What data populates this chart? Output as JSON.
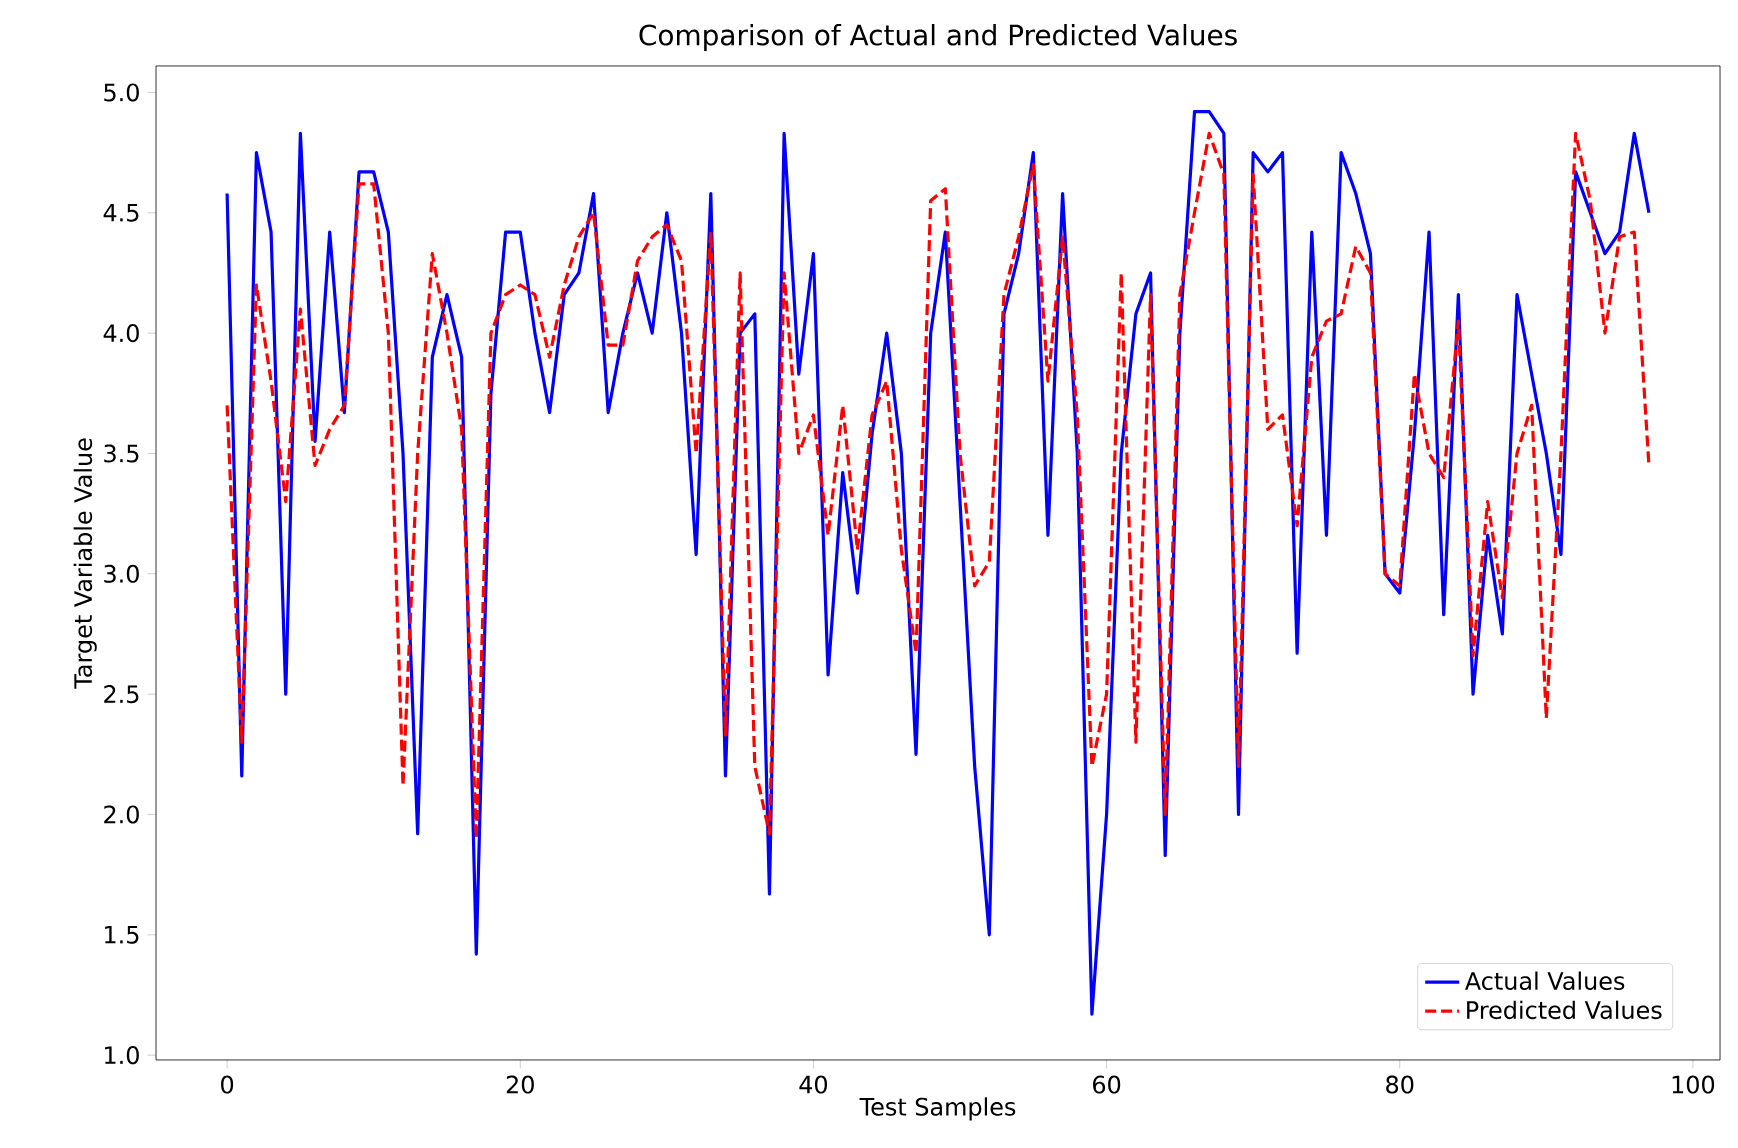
{
  "chart_data": {
    "type": "line",
    "title": "Comparison of Actual and Predicted Values",
    "xlabel": "Test Samples",
    "ylabel": "Target Variable Value",
    "x": [
      0,
      1,
      2,
      3,
      4,
      5,
      6,
      7,
      8,
      9,
      10,
      11,
      12,
      13,
      14,
      15,
      16,
      17,
      18,
      19,
      20,
      21,
      22,
      23,
      24,
      25,
      26,
      27,
      28,
      29,
      30,
      31,
      32,
      33,
      34,
      35,
      36,
      37,
      38,
      39,
      40,
      41,
      42,
      43,
      44,
      45,
      46,
      47,
      48,
      49,
      50,
      51,
      52,
      53,
      54,
      55,
      56,
      57,
      58,
      59,
      60,
      61,
      62,
      63,
      64,
      65,
      66,
      67,
      68,
      69,
      70,
      71,
      72,
      73,
      74,
      75,
      76,
      77,
      78,
      79,
      80,
      81,
      82,
      83,
      84,
      85,
      86,
      87,
      88,
      89,
      90,
      91,
      92,
      93,
      94,
      95,
      96,
      97
    ],
    "series": [
      {
        "name": "Actual Values",
        "color": "#0000ff",
        "line_style": "solid",
        "values": [
          4.58,
          2.16,
          4.75,
          4.42,
          2.5,
          4.83,
          3.55,
          4.42,
          3.67,
          4.67,
          4.67,
          4.42,
          3.5,
          1.92,
          3.9,
          4.16,
          3.9,
          1.42,
          3.75,
          4.42,
          4.42,
          4.0,
          3.67,
          4.16,
          4.25,
          4.58,
          3.67,
          4.0,
          4.25,
          4.0,
          4.5,
          4.0,
          3.08,
          4.58,
          2.16,
          4.0,
          4.08,
          1.67,
          4.83,
          3.83,
          4.33,
          2.58,
          3.42,
          2.92,
          3.58,
          4.0,
          3.5,
          2.25,
          4.0,
          4.42,
          3.3,
          2.2,
          1.5,
          4.08,
          4.33,
          4.75,
          3.16,
          4.58,
          3.5,
          1.17,
          2.0,
          3.5,
          4.08,
          4.25,
          1.83,
          4.0,
          4.92,
          4.92,
          4.83,
          2.0,
          4.75,
          4.67,
          4.75,
          2.67,
          4.42,
          3.16,
          4.75,
          4.58,
          4.33,
          3.0,
          2.92,
          3.58,
          4.42,
          2.83,
          4.16,
          2.5,
          3.16,
          2.75,
          4.16,
          3.83,
          3.5,
          3.08,
          4.67,
          4.5,
          4.33,
          4.42,
          4.83,
          4.5
        ]
      },
      {
        "name": "Predicted Values",
        "color": "#ff0000",
        "line_style": "dashed",
        "values": [
          3.7,
          2.3,
          4.2,
          3.8,
          3.3,
          4.1,
          3.45,
          3.6,
          3.7,
          4.62,
          4.62,
          4.0,
          2.12,
          3.5,
          4.33,
          4.0,
          3.6,
          1.9,
          4.0,
          4.16,
          4.2,
          4.16,
          3.9,
          4.2,
          4.4,
          4.5,
          3.95,
          3.95,
          4.3,
          4.4,
          4.45,
          4.3,
          3.5,
          4.42,
          2.33,
          4.25,
          2.2,
          1.92,
          4.25,
          3.5,
          3.66,
          3.16,
          3.7,
          3.1,
          3.66,
          3.8,
          3.1,
          2.67,
          4.55,
          4.6,
          3.5,
          2.95,
          3.05,
          4.16,
          4.4,
          4.7,
          3.8,
          4.4,
          3.66,
          2.2,
          2.5,
          4.25,
          2.3,
          4.16,
          2.0,
          4.16,
          4.5,
          4.83,
          4.66,
          2.2,
          4.66,
          3.6,
          3.66,
          3.2,
          3.9,
          4.05,
          4.08,
          4.36,
          4.25,
          3.0,
          2.95,
          3.83,
          3.5,
          3.4,
          4.05,
          2.66,
          3.3,
          2.9,
          3.5,
          3.7,
          2.4,
          3.5,
          4.83,
          4.55,
          4.0,
          4.4,
          4.42,
          3.45
        ]
      }
    ],
    "xlim": [
      -4.85,
      101.85
    ],
    "ylim": [
      0.98,
      5.11
    ],
    "xticks": [
      0,
      20,
      40,
      60,
      80,
      100
    ],
    "yticks": [
      {
        "value": 1.0,
        "label": "1.0"
      },
      {
        "value": 1.5,
        "label": "1.5"
      },
      {
        "value": 2.0,
        "label": "2.0"
      },
      {
        "value": 2.5,
        "label": "2.5"
      },
      {
        "value": 3.0,
        "label": "3.0"
      },
      {
        "value": 3.5,
        "label": "3.5"
      },
      {
        "value": 4.0,
        "label": "4.0"
      },
      {
        "value": 4.5,
        "label": "4.5"
      },
      {
        "value": 5.0,
        "label": "5.0"
      }
    ],
    "grid": false,
    "legend": "bottom right",
    "marker": "none"
  }
}
